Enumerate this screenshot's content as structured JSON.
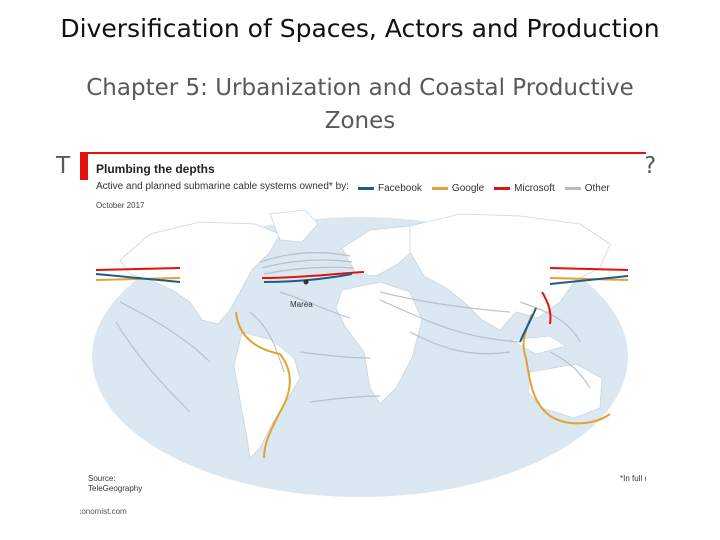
{
  "slide": {
    "title": "Diversification of Spaces, Actors and Production",
    "subtitle": "Chapter 5: Urbanization and Coastal Productive Zones",
    "bullet_left_fragment": "T",
    "bullet_right_fragment": "?"
  },
  "infographic": {
    "title": "Plumbing the depths",
    "subtitle": "Active and planned submarine cable systems owned* by:",
    "date": "October 2017",
    "legend": [
      {
        "label": "Facebook",
        "color": "#1f5c8b"
      },
      {
        "label": "Google",
        "color": "#e0a331"
      },
      {
        "label": "Microsoft",
        "color": "#e3120b"
      },
      {
        "label": "Other",
        "color": "#b5bcc4"
      }
    ],
    "map_label": "Marea",
    "source_label": "Source:",
    "source_value": "TeleGeography",
    "footnote": "*In full or in part",
    "brand": "Economist.com",
    "colors": {
      "ocean": "#dbe8f1",
      "land": "#ffffff",
      "other_cable": "#b5bcc4",
      "facebook": "#1f5c8b",
      "google": "#e0a331",
      "microsoft": "#e3120b",
      "accent": "#e3120b"
    }
  }
}
